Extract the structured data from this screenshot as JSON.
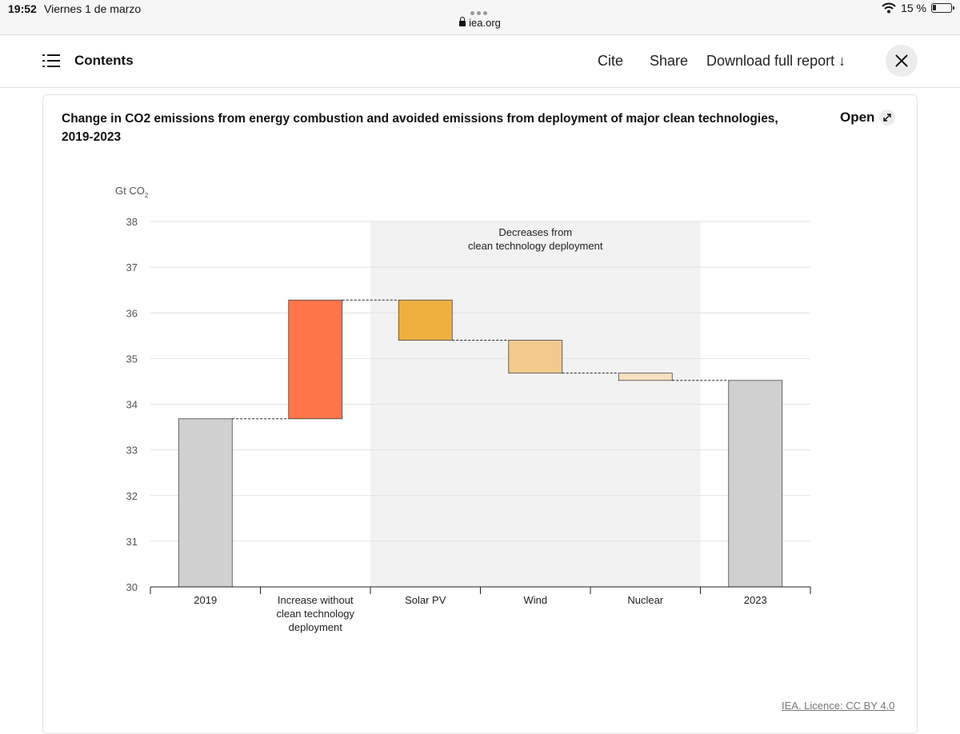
{
  "status_bar": {
    "time": "19:52",
    "date": "Viernes 1 de marzo",
    "url": "iea.org",
    "battery": "15 %"
  },
  "header": {
    "contents_label": "Contents",
    "cite_label": "Cite",
    "share_label": "Share",
    "download_label": "Download full report ↓"
  },
  "card": {
    "open_label": "Open",
    "licence": "IEA. Licence: CC BY 4.0"
  },
  "colors": {
    "total_bar": "#d0d0d0",
    "increase": "#ff7549",
    "solar": "#f0b040",
    "wind": "#f2ca8e",
    "nuclear": "#f6e0c0",
    "shaded_region": "#f2f2f2"
  },
  "chart_data": {
    "type": "waterfall",
    "title": "Change in CO2 emissions from energy combustion and avoided emissions from deployment of major clean technologies, 2019-2023",
    "ylabel": "Gt CO",
    "ylabel_sub": "2",
    "ylim": [
      30,
      38
    ],
    "yticks": [
      30,
      31,
      32,
      33,
      34,
      35,
      36,
      37,
      38
    ],
    "grid": true,
    "region_label": [
      "Decreases from",
      "clean technology deployment"
    ],
    "region_categories": [
      2,
      3,
      4
    ],
    "categories": [
      [
        "2019"
      ],
      [
        "Increase without",
        "clean technology",
        "deployment"
      ],
      [
        "Solar PV"
      ],
      [
        "Wind"
      ],
      [
        "Nuclear"
      ],
      [
        "2023"
      ]
    ],
    "bars": [
      {
        "start": 30,
        "end": 33.68,
        "color_key": "total_bar"
      },
      {
        "start": 33.68,
        "end": 36.28,
        "color_key": "increase"
      },
      {
        "start": 36.28,
        "end": 35.4,
        "color_key": "solar"
      },
      {
        "start": 35.4,
        "end": 34.68,
        "color_key": "wind"
      },
      {
        "start": 34.68,
        "end": 34.52,
        "color_key": "nuclear"
      },
      {
        "start": 30,
        "end": 34.52,
        "color_key": "total_bar"
      }
    ]
  }
}
